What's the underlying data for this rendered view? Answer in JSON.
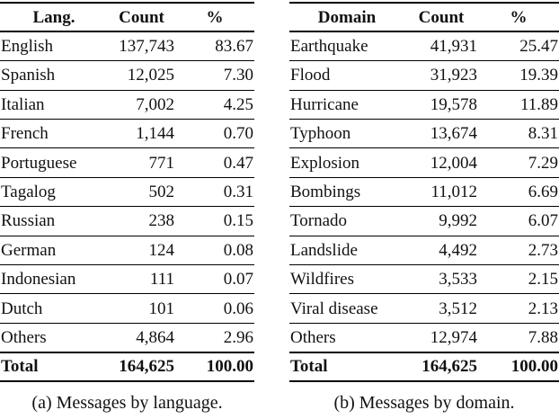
{
  "tables": [
    {
      "headers": [
        "Lang.",
        "Count",
        "%"
      ],
      "rows": [
        [
          "English",
          "137,743",
          "83.67"
        ],
        [
          "Spanish",
          "12,025",
          "7.30"
        ],
        [
          "Italian",
          "7,002",
          "4.25"
        ],
        [
          "French",
          "1,144",
          "0.70"
        ],
        [
          "Portuguese",
          "771",
          "0.47"
        ],
        [
          "Tagalog",
          "502",
          "0.31"
        ],
        [
          "Russian",
          "238",
          "0.15"
        ],
        [
          "German",
          "124",
          "0.08"
        ],
        [
          "Indonesian",
          "111",
          "0.07"
        ],
        [
          "Dutch",
          "101",
          "0.06"
        ],
        [
          "Others",
          "4,864",
          "2.96"
        ]
      ],
      "total": [
        "Total",
        "164,625",
        "100.00"
      ],
      "caption": "(a) Messages by language."
    },
    {
      "headers": [
        "Domain",
        "Count",
        "%"
      ],
      "rows": [
        [
          "Earthquake",
          "41,931",
          "25.47"
        ],
        [
          "Flood",
          "31,923",
          "19.39"
        ],
        [
          "Hurricane",
          "19,578",
          "11.89"
        ],
        [
          "Typhoon",
          "13,674",
          "8.31"
        ],
        [
          "Explosion",
          "12,004",
          "7.29"
        ],
        [
          "Bombings",
          "11,012",
          "6.69"
        ],
        [
          "Tornado",
          "9,992",
          "6.07"
        ],
        [
          "Landslide",
          "4,492",
          "2.73"
        ],
        [
          "Wildfires",
          "3,533",
          "2.15"
        ],
        [
          "Viral disease",
          "3,512",
          "2.13"
        ],
        [
          "Others",
          "12,974",
          "7.88"
        ]
      ],
      "total": [
        "Total",
        "164,625",
        "100.00"
      ],
      "caption": "(b) Messages by domain."
    }
  ]
}
